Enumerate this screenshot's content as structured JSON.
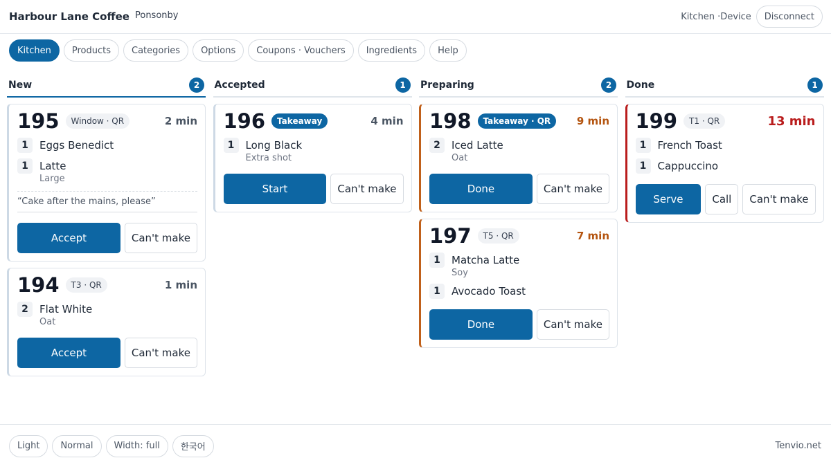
{
  "header": {
    "title": "Harbour Lane Coffee",
    "location": "Ponsonby",
    "device": "Kitchen ·Device",
    "disconnect": "Disconnect"
  },
  "tabs": [
    {
      "label": "Kitchen",
      "active": true
    },
    {
      "label": "Products"
    },
    {
      "label": "Categories"
    },
    {
      "label": "Options"
    },
    {
      "label": "Coupons · Vouchers"
    },
    {
      "label": "Ingredients"
    },
    {
      "label": "Help"
    }
  ],
  "columns": [
    {
      "title": "New",
      "count": 2,
      "active": true,
      "accent": "#cdd9e5",
      "orders": [
        {
          "number": 195,
          "tag": "Window · QR",
          "time": "2 min",
          "time_color": "#4a5563",
          "items": [
            {
              "qty": 1,
              "name": "Eggs Benedict"
            },
            {
              "qty": 1,
              "name": "Latte",
              "note": "Large"
            }
          ],
          "note": "“Cake after the mains, please”",
          "actions": [
            "Accept",
            "Can't make"
          ]
        },
        {
          "number": 194,
          "tag": "T3 · QR",
          "time": "1 min",
          "time_color": "#4a5563",
          "items": [
            {
              "qty": 2,
              "name": "Flat White",
              "note": "Oat"
            }
          ],
          "actions": [
            "Accept",
            "Can't make"
          ]
        }
      ]
    },
    {
      "title": "Accepted",
      "count": 1,
      "accent": "#cdd9e5",
      "orders": [
        {
          "number": 196,
          "tag": "Takeaway",
          "tag_filled": true,
          "time": "4 min",
          "time_color": "#4a5563",
          "items": [
            {
              "qty": 1,
              "name": "Long Black",
              "note": "Extra shot"
            }
          ],
          "actions": [
            "Start",
            "Can't make"
          ]
        }
      ]
    },
    {
      "title": "Preparing",
      "count": 2,
      "accent": "#c0601a",
      "orders": [
        {
          "number": 198,
          "tag": "Takeaway · QR",
          "tag_filled": true,
          "time": "9 min",
          "time_color": "#b4540f",
          "items": [
            {
              "qty": 2,
              "name": "Iced Latte",
              "note": "Oat"
            }
          ],
          "actions": [
            "Done",
            "Can't make"
          ]
        },
        {
          "number": 197,
          "tag": "T5 · QR",
          "time": "7 min",
          "time_color": "#b4540f",
          "items": [
            {
              "qty": 1,
              "name": "Matcha Latte",
              "note": "Soy"
            },
            {
              "qty": 1,
              "name": "Avocado Toast"
            }
          ],
          "actions": [
            "Done",
            "Can't make"
          ]
        }
      ]
    },
    {
      "title": "Done",
      "count": 1,
      "accent": "#b91c1c",
      "orders": [
        {
          "number": 199,
          "tag": "T1 · QR",
          "time": "13 min",
          "time_color": "#b91c1c",
          "time_large": true,
          "items": [
            {
              "qty": 1,
              "name": "French Toast"
            },
            {
              "qty": 1,
              "name": "Cappuccino"
            }
          ],
          "actions": [
            "Serve",
            "Call",
            "Can't make"
          ]
        }
      ]
    }
  ],
  "footer": {
    "buttons": [
      "Light",
      "Normal",
      "Width: full",
      "한국어"
    ],
    "brand": "Tenvio.net"
  }
}
